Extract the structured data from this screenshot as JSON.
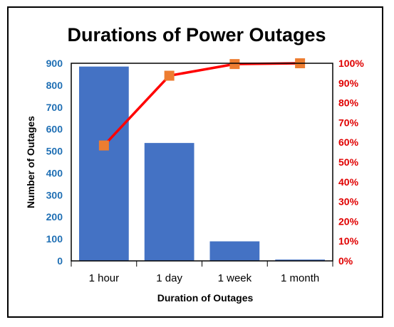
{
  "chart_data": {
    "type": "bar",
    "title": "Durations of Power Outages",
    "xlabel": "Duration of Outages",
    "ylabel": "Number of Outages",
    "categories": [
      "1 hour",
      "1 day",
      "1 week",
      "1 month"
    ],
    "values": [
      885,
      537,
      89,
      6
    ],
    "ylim": [
      0,
      900
    ],
    "yticks": [
      "0",
      "100",
      "200",
      "300",
      "400",
      "500",
      "600",
      "700",
      "800",
      "900"
    ],
    "secondary_axis": {
      "type": "line",
      "values": [
        58.4,
        93.7,
        99.6,
        100
      ],
      "ylim": [
        0,
        100
      ],
      "yticks": [
        "0%",
        "10%",
        "20%",
        "30%",
        "40%",
        "50%",
        "60%",
        "70%",
        "80%",
        "90%",
        "100%"
      ]
    },
    "grid": false,
    "colors": {
      "bar": "#4472c4",
      "line": "#ff0000",
      "marker": "#ed7d31",
      "left_tick": "#1f6fb4",
      "right_tick": "#e00000"
    }
  }
}
